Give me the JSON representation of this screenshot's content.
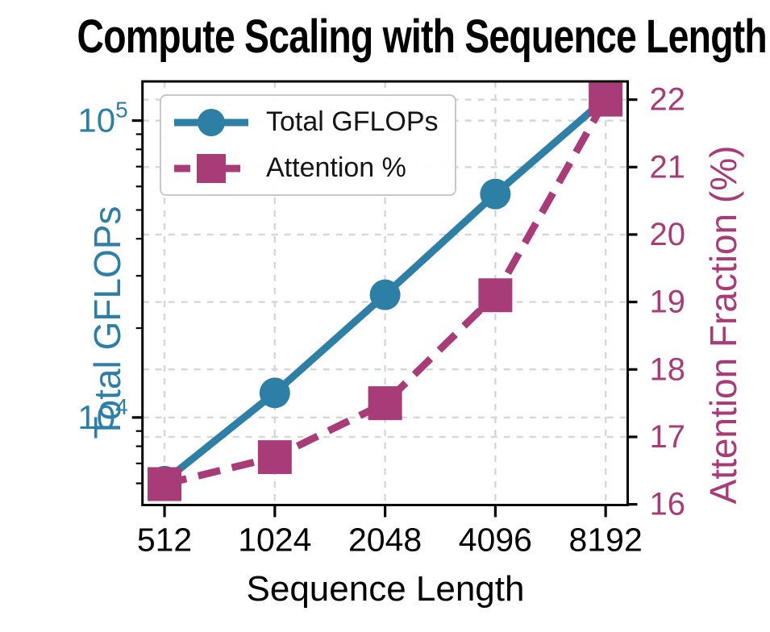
{
  "title": "Compute Scaling with Sequence Length",
  "legend": {
    "position": "upper-left"
  },
  "chart_data": {
    "type": "line",
    "title": "Compute Scaling with Sequence Length",
    "xlabel": "Sequence Length",
    "x": [
      512,
      1024,
      2048,
      4096,
      8192
    ],
    "x_tick_labels": [
      "512",
      "1024",
      "2048",
      "4096",
      "8192"
    ],
    "x_scale": "log2",
    "x_domain_log2": [
      8.8,
      13.2
    ],
    "grid": true,
    "colors": {
      "gflops": "#2e7fa6",
      "attention": "#a83c78",
      "grid": "#d8d8d8",
      "spine": "#000000",
      "legend_border": "#c8c8c8",
      "text": "#000000"
    },
    "series": [
      {
        "name": "Total GFLOPs",
        "axis": "left",
        "color": "#2e7fa6",
        "marker": "circle",
        "line": "solid",
        "values": [
          6100,
          12100,
          25900,
          56600,
          118700
        ]
      },
      {
        "name": "Attention %",
        "axis": "right",
        "color": "#a83c78",
        "marker": "square",
        "line": "dashed",
        "values": [
          16.3,
          16.7,
          17.5,
          19.1,
          22.0
        ]
      }
    ],
    "left_axis": {
      "label": "Total GFLOPs",
      "scale": "log10",
      "color": "#2e7fa6",
      "domain_log10": [
        3.705,
        5.132
      ],
      "major_ticks": [
        {
          "value": 10000,
          "base": "10",
          "exp": "4"
        },
        {
          "value": 100000,
          "base": "10",
          "exp": "5"
        }
      ]
    },
    "right_axis": {
      "label": "Attention Fraction (%)",
      "scale": "linear",
      "color": "#a83c78",
      "domain": [
        15.99,
        22.27
      ],
      "ticks": [
        16,
        17,
        18,
        19,
        20,
        21,
        22
      ]
    }
  }
}
